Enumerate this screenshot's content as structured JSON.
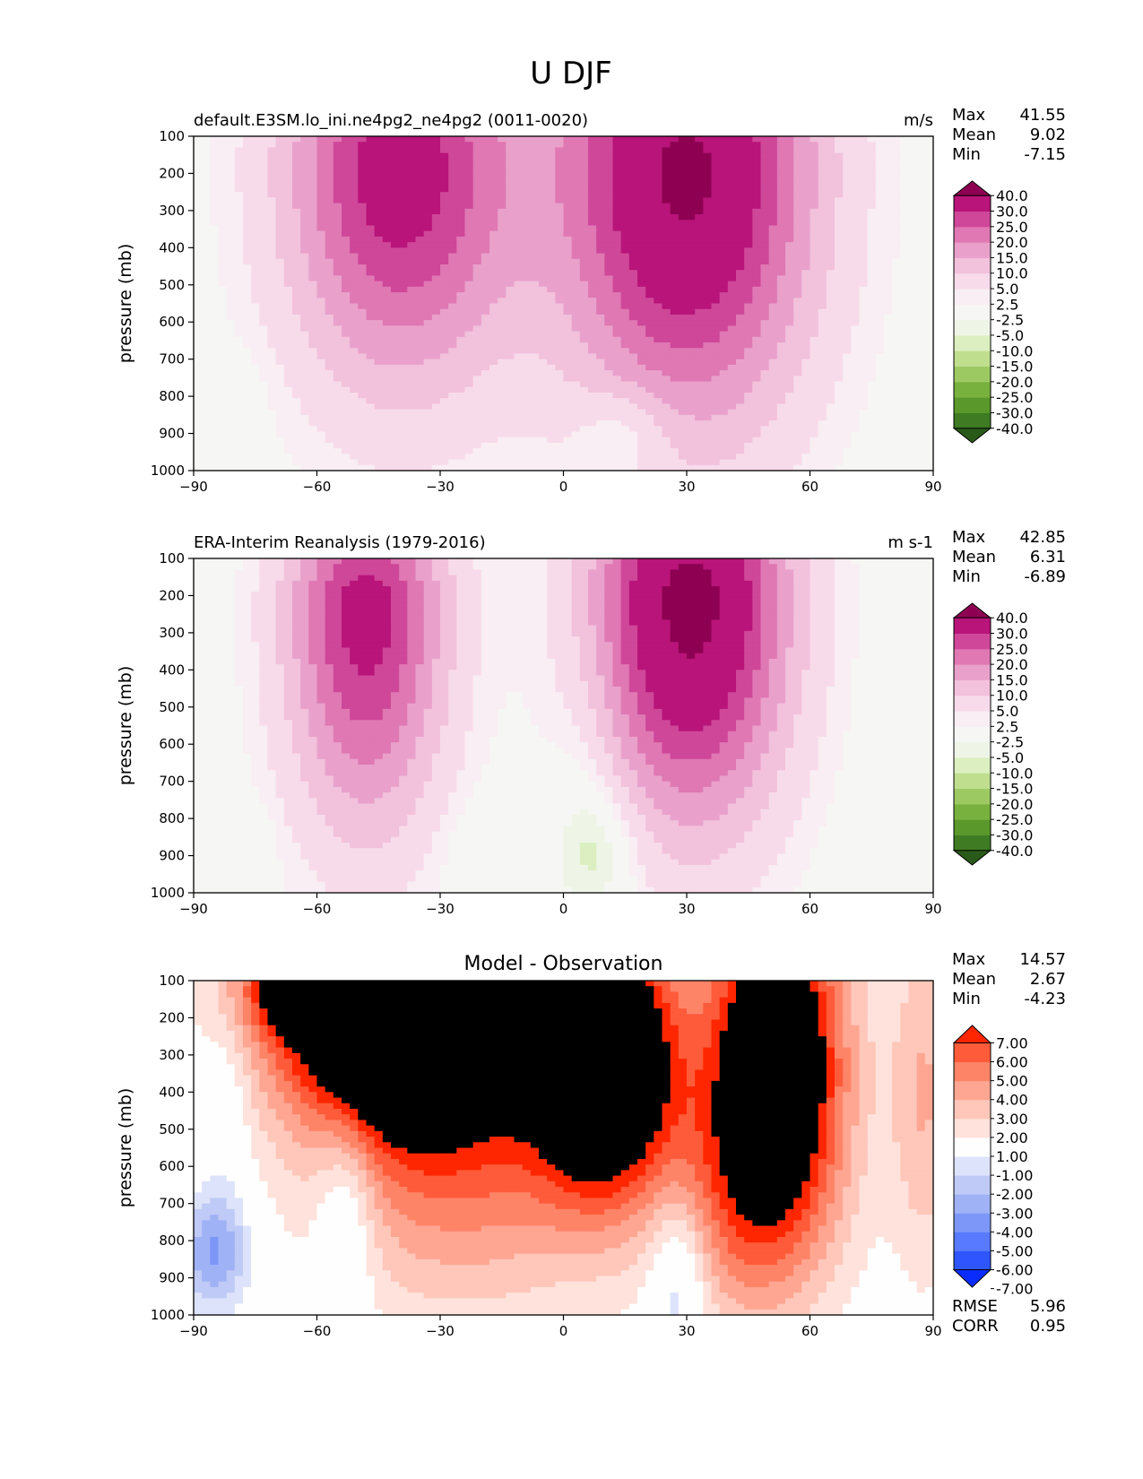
{
  "figure_title": "U DJF",
  "colors": {
    "wind_levels": [
      "#2a5a1a",
      "#3e7b22",
      "#5a982b",
      "#79b13f",
      "#9dc963",
      "#bfdf8e",
      "#dbefc0",
      "#eef5e6",
      "#f6f6f4",
      "#f8eef3",
      "#f8dbea",
      "#f2c1dc",
      "#e9a1cb",
      "#df78b3",
      "#cf4799",
      "#b81479",
      "#8e0152"
    ],
    "diff_levels": [
      "#0a2dfe",
      "#2e55fe",
      "#577afe",
      "#7c97f8",
      "#9fb2f5",
      "#bfcaf6",
      "#dde3fa",
      "#fefefe",
      "#ffe2db",
      "#fec7ba",
      "#fea692",
      "#fe8468",
      "#fe5b3a",
      "#fe2600"
    ]
  },
  "chart_data": [
    {
      "type": "contour",
      "title": "default.E3SM.lo_ini.ne4pg2_ne4pg2 (0011-0020)",
      "units": "m/s",
      "xlabel": "",
      "ylabel": "pressure (mb)",
      "xlim": [
        -90,
        90
      ],
      "ylim": [
        1000,
        100
      ],
      "xticks": [
        "−90",
        "−60",
        "−30",
        "0",
        "30",
        "60",
        "90"
      ],
      "yticks": [
        "100",
        "200",
        "300",
        "400",
        "500",
        "600",
        "700",
        "800",
        "900",
        "1000"
      ],
      "stats": [
        [
          "Max",
          "41.55"
        ],
        [
          "Mean",
          "9.02"
        ],
        [
          "Min",
          "-7.15"
        ]
      ],
      "colorbar_labels": [
        "40.0",
        "30.0",
        "25.0",
        "20.0",
        "15.0",
        "10.0",
        "5.0",
        "2.5",
        "-2.5",
        "-5.0",
        "-10.0",
        "-15.0",
        "-20.0",
        "-25.0",
        "-30.0",
        "-40.0"
      ],
      "jets": [
        {
          "lat": -40,
          "p": 180,
          "max": 34,
          "sx": 20,
          "sp_up": 260,
          "sp_down": 420
        },
        {
          "lat": 30,
          "p": 190,
          "max": 41.55,
          "sx": 22,
          "sp_up": 300,
          "sp_down": 480
        }
      ],
      "easterlies": [
        {
          "lat": 15,
          "p": 900,
          "min": -7.15,
          "sx": 8,
          "sp": 90
        },
        {
          "lat": -82,
          "p": 800,
          "min": -3,
          "sx": 6,
          "sp": 80
        }
      ]
    },
    {
      "type": "contour",
      "title": "ERA-Interim Reanalysis (1979-2016)",
      "units": "m s-1",
      "xlabel": "",
      "ylabel": "pressure (mb)",
      "xlim": [
        -90,
        90
      ],
      "ylim": [
        1000,
        100
      ],
      "xticks": [
        "−90",
        "−60",
        "−30",
        "0",
        "30",
        "60",
        "90"
      ],
      "yticks": [
        "100",
        "200",
        "300",
        "400",
        "500",
        "600",
        "700",
        "800",
        "900",
        "1000"
      ],
      "stats": [
        [
          "Max",
          "42.85"
        ],
        [
          "Mean",
          "6.31"
        ],
        [
          "Min",
          "-6.89"
        ]
      ],
      "colorbar_labels": [
        "40.0",
        "30.0",
        "25.0",
        "20.0",
        "15.0",
        "10.0",
        "5.0",
        "2.5",
        "-2.5",
        "-5.0",
        "-10.0",
        "-15.0",
        "-20.0",
        "-25.0",
        "-30.0",
        "-40.0"
      ],
      "jets": [
        {
          "lat": -48,
          "p": 230,
          "max": 33,
          "sx": 14,
          "sp_up": 200,
          "sp_down": 420
        },
        {
          "lat": 31,
          "p": 210,
          "max": 42.85,
          "sx": 17,
          "sp_up": 260,
          "sp_down": 420
        }
      ],
      "easterlies": [
        {
          "lat": 5,
          "p": 750,
          "min": -4,
          "sx": 6,
          "sp": 250
        },
        {
          "lat": 10,
          "p": 880,
          "min": -6.89,
          "sx": 7,
          "sp": 120
        },
        {
          "lat": -20,
          "p": 900,
          "min": -3,
          "sx": 6,
          "sp": 100
        },
        {
          "lat": -73,
          "p": 880,
          "min": -2.8,
          "sx": 2,
          "sp": 70
        }
      ]
    },
    {
      "type": "contour",
      "title": "Model - Observation",
      "units": "",
      "xlabel": "",
      "ylabel": "pressure (mb)",
      "xlim": [
        -90,
        90
      ],
      "ylim": [
        1000,
        100
      ],
      "xticks": [
        "−90",
        "−60",
        "−30",
        "0",
        "30",
        "60",
        "90"
      ],
      "yticks": [
        "100",
        "200",
        "300",
        "400",
        "500",
        "600",
        "700",
        "800",
        "900",
        "1000"
      ],
      "stats": [
        [
          "Max",
          "14.57"
        ],
        [
          "Mean",
          "2.67"
        ],
        [
          "Min",
          "-4.23"
        ]
      ],
      "colorbar_labels": [
        "7.00",
        "6.00",
        "5.00",
        "4.00",
        "3.00",
        "2.00",
        "1.00",
        "-1.00",
        "-2.00",
        "-3.00",
        "-4.00",
        "-5.00",
        "-6.00",
        "-7.00"
      ],
      "metrics": [
        [
          "RMSE",
          "5.96"
        ],
        [
          "CORR",
          "0.95"
        ]
      ],
      "positives": [
        {
          "lat": -38,
          "p": 200,
          "amp": 14,
          "sx": 22,
          "sp": 220
        },
        {
          "lat": 10,
          "p": 300,
          "amp": 12,
          "sx": 12,
          "sp": 260
        },
        {
          "lat": 52,
          "p": 280,
          "amp": 10,
          "sx": 12,
          "sp": 320
        },
        {
          "lat": -65,
          "p": 120,
          "amp": 5,
          "sx": 10,
          "sp": 90
        },
        {
          "lat": -25,
          "p": 650,
          "amp": 4,
          "sx": 25,
          "sp": 260
        },
        {
          "lat": 45,
          "p": 700,
          "amp": 4,
          "sx": 15,
          "sp": 260
        },
        {
          "lat": 88,
          "p": 400,
          "amp": 3,
          "sx": 6,
          "sp": 350
        }
      ],
      "negatives": [
        {
          "lat": -85,
          "p": 830,
          "amp": -4.23,
          "sx": 6,
          "sp": 110
        },
        {
          "lat": -53,
          "p": 720,
          "amp": -2.5,
          "sx": 5,
          "sp": 200
        },
        {
          "lat": 28,
          "p": 900,
          "amp": -3,
          "sx": 5,
          "sp": 160
        },
        {
          "lat": -82,
          "p": 450,
          "amp": -1.3,
          "sx": 4,
          "sp": 200
        }
      ]
    }
  ]
}
